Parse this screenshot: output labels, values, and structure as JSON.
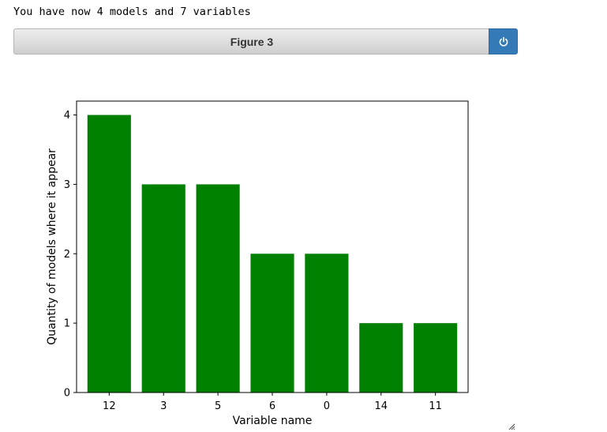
{
  "output": {
    "text": "You have now 4 models and 7 variables"
  },
  "figure": {
    "title": "Figure 3",
    "close_icon": "power-icon"
  },
  "colors": {
    "bar": "#008000",
    "button": "#337ab7"
  },
  "chart_data": {
    "type": "bar",
    "categories": [
      "12",
      "3",
      "5",
      "6",
      "0",
      "14",
      "11"
    ],
    "values": [
      4,
      3,
      3,
      2,
      2,
      1,
      1
    ],
    "xlabel": "Variable name",
    "ylabel": "Quantity of models where it appear",
    "ylim": [
      0,
      4.2
    ],
    "yticks": [
      0,
      1,
      2,
      3,
      4
    ],
    "grid": false
  }
}
